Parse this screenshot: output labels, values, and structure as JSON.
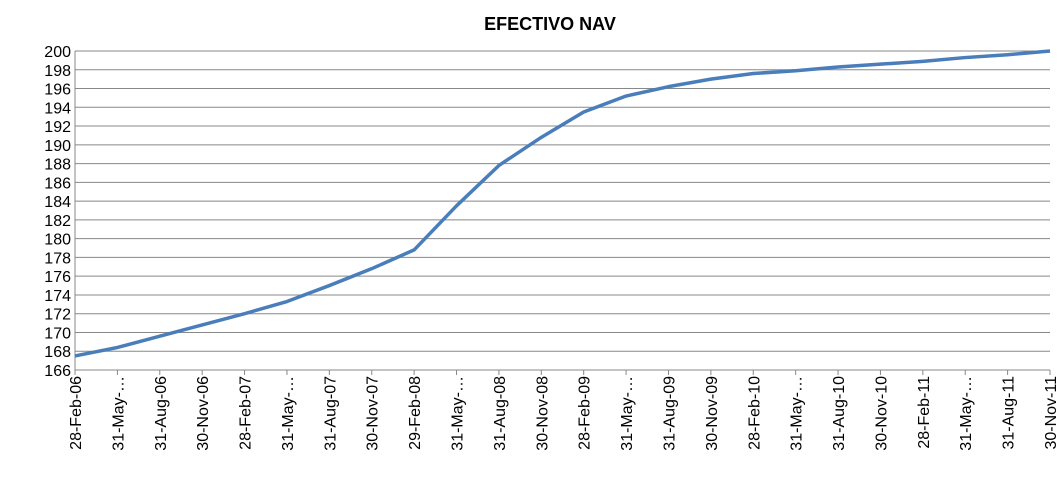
{
  "chart_data": {
    "type": "line",
    "title": "EFECTIVO NAV",
    "categories": [
      "28-Feb-06",
      "31-May-…",
      "31-Aug-06",
      "30-Nov-06",
      "28-Feb-07",
      "31-May-…",
      "31-Aug-07",
      "30-Nov-07",
      "29-Feb-08",
      "31-May-…",
      "31-Aug-08",
      "30-Nov-08",
      "28-Feb-09",
      "31-May-…",
      "31-Aug-09",
      "30-Nov-09",
      "28-Feb-10",
      "31-May-…",
      "31-Aug-10",
      "30-Nov-10",
      "28-Feb-11",
      "31-May-…",
      "31-Aug-11",
      "30-Nov-11"
    ],
    "values": [
      167.5,
      168.4,
      169.6,
      170.8,
      172.0,
      173.3,
      175.0,
      176.8,
      178.8,
      183.5,
      187.8,
      190.8,
      193.5,
      195.2,
      196.2,
      197.0,
      197.6,
      197.9,
      198.3,
      198.6,
      198.9,
      199.3,
      199.6,
      200.0
    ],
    "color": "#4a7ebb",
    "ylim": [
      166,
      200
    ],
    "yticks": [
      166,
      168,
      170,
      172,
      174,
      176,
      178,
      180,
      182,
      184,
      186,
      188,
      190,
      192,
      194,
      196,
      198,
      200
    ],
    "grid": true
  }
}
